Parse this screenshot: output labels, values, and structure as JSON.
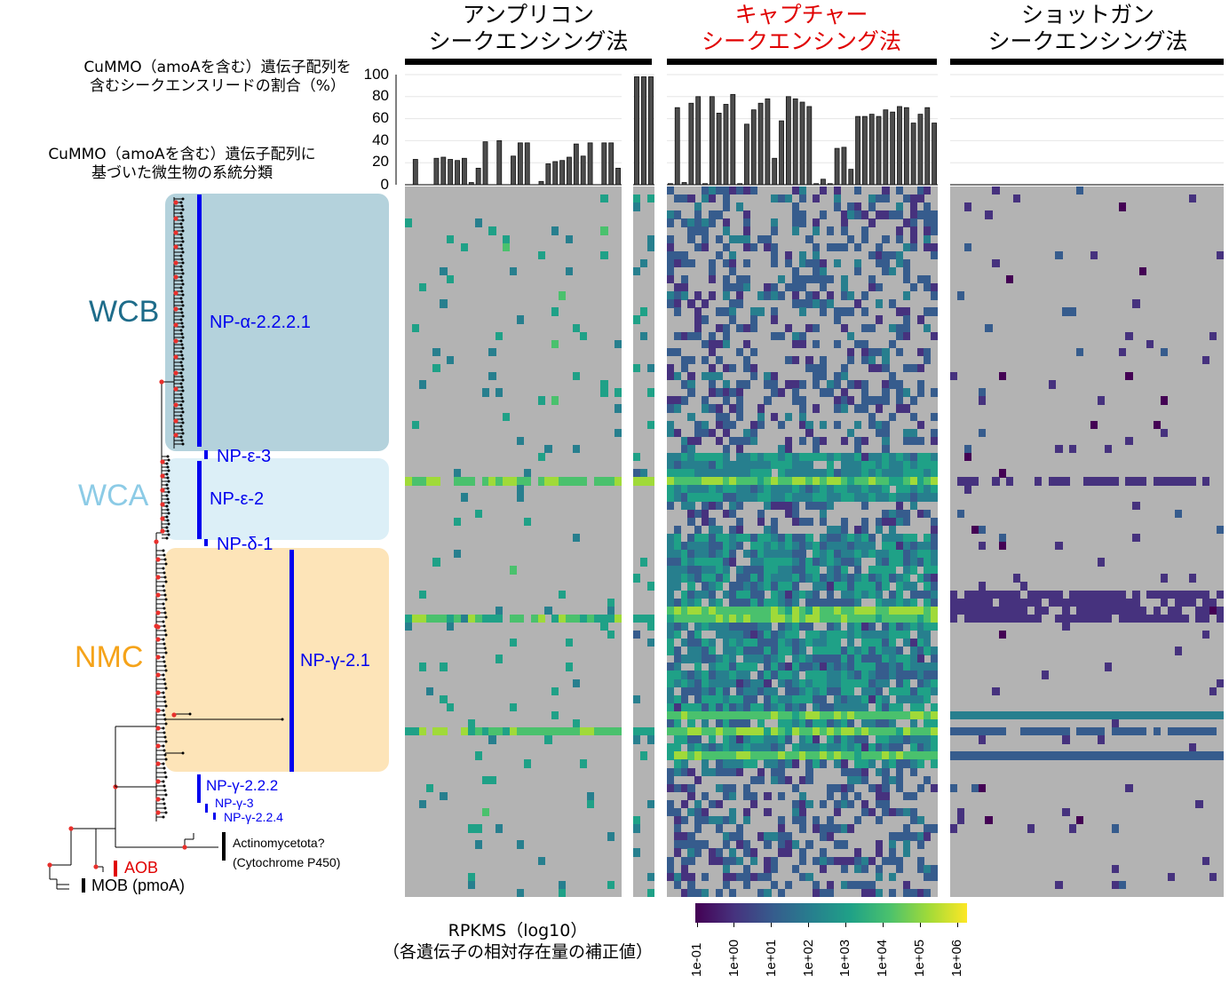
{
  "methods": [
    {
      "line1": "アンプリコン",
      "line2": "シークエンシング法",
      "color": "#000000"
    },
    {
      "line1": "キャプチャー",
      "line2": "シークエンシング法",
      "color": "#e00000"
    },
    {
      "line1": "ショットガン",
      "line2": "シークエンシング法",
      "color": "#000000"
    }
  ],
  "annotations": {
    "bar_title_line1": "CuMMO（amoAを含む）遺伝子配列を",
    "bar_title_line2": "含むシークエンスリードの割合（%）",
    "tree_title_line1": "CuMMO（amoAを含む）遺伝子配列に",
    "tree_title_line2": "基づいた微生物の系統分類"
  },
  "bar_axis_ticks": [
    "100",
    "80",
    "60",
    "40",
    "20",
    "0"
  ],
  "groups": [
    {
      "name": "WCB",
      "box_color": "#b4d2dc",
      "label_color": "#1e6c8a"
    },
    {
      "name": "WCA",
      "box_color": "#dceff7",
      "label_color": "#8ccbe6"
    },
    {
      "name": "NMC",
      "box_color": "#fde4b8",
      "label_color": "#f5a31a"
    }
  ],
  "clades": [
    "NP-α-2.2.2.1",
    "NP-ε-3",
    "NP-ε-2",
    "NP-δ-1",
    "NP-γ-2.1",
    "NP-γ-2.2.2",
    "NP-γ-3",
    "NP-γ-2.2.4"
  ],
  "outgroups": {
    "actino_line1": "Actinomycetota?",
    "actino_line2": "(Cytochrome P450)",
    "aob": "AOB",
    "mob": "MOB (pmoA)"
  },
  "colorbar": {
    "title_line1": "RPKMS（log10）",
    "title_line2": "（各遺伝子の相対存在量の補正値）",
    "ticks": [
      "1e-01",
      "1e+00",
      "1e+01",
      "1e+02",
      "1e+03",
      "1e+04",
      "1e+05",
      "1e+06"
    ],
    "colors": [
      "#440154",
      "#46327e",
      "#365c8d",
      "#277f8e",
      "#1fa187",
      "#4ac16d",
      "#a0da39",
      "#fde725"
    ]
  },
  "chart_data": {
    "type": "bar",
    "ylabel": "CuMMO（amoAを含む）遺伝子配列を含むシークエンスリードの割合（%）",
    "ylim": [
      0,
      100
    ],
    "series": [
      {
        "values": [
          0,
          23,
          0,
          0,
          24,
          25,
          23,
          22,
          24,
          2,
          15,
          39,
          0,
          40,
          0,
          26,
          38,
          38,
          0,
          3,
          19,
          21,
          22,
          25,
          37,
          26,
          38,
          0,
          38,
          38,
          15
        ]
      },
      {
        "values": [
          98,
          98,
          98
        ]
      },
      {
        "values": [
          1,
          70,
          2,
          74,
          80,
          1,
          80,
          65,
          73,
          82,
          1,
          55,
          68,
          74,
          78,
          24,
          58,
          80,
          78,
          75,
          71,
          1,
          5,
          1,
          33,
          34,
          14,
          62,
          62,
          64,
          62,
          68,
          66,
          71,
          70,
          56,
          64,
          70,
          56
        ]
      },
      {
        "values": []
      }
    ]
  }
}
